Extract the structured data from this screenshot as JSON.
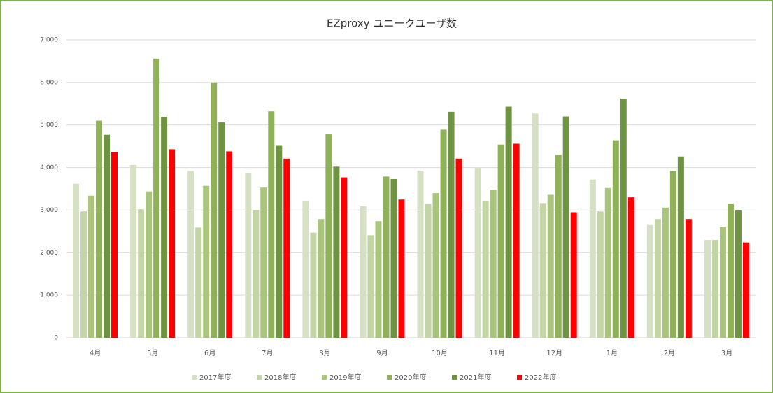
{
  "chart_data": {
    "type": "bar",
    "title": "EZproxy ユニークユーザ数",
    "categories": [
      "4月",
      "5月",
      "6月",
      "7月",
      "8月",
      "9月",
      "10月",
      "11月",
      "12月",
      "1月",
      "2月",
      "3月"
    ],
    "series": [
      {
        "name": "2017年度",
        "color": "#d6e0c4",
        "values": [
          3620,
          4060,
          3920,
          3870,
          3210,
          3090,
          3930,
          3990,
          5270,
          3720,
          2650,
          2300
        ]
      },
      {
        "name": "2018年度",
        "color": "#c3d4a5",
        "values": [
          2970,
          3020,
          2590,
          3000,
          2470,
          2410,
          3140,
          3210,
          3150,
          2970,
          2790,
          2300
        ]
      },
      {
        "name": "2019年度",
        "color": "#a9c47b",
        "values": [
          3340,
          3440,
          3570,
          3530,
          2790,
          2740,
          3400,
          3480,
          3360,
          3520,
          3060,
          2600
        ]
      },
      {
        "name": "2020年度",
        "color": "#8fb157",
        "values": [
          5100,
          6560,
          6000,
          5320,
          4780,
          3790,
          4890,
          4540,
          4300,
          4640,
          3920,
          3140
        ]
      },
      {
        "name": "2021年度",
        "color": "#6e9441",
        "values": [
          4770,
          5190,
          5060,
          4510,
          4020,
          3730,
          5310,
          5430,
          5200,
          5620,
          4260,
          2990
        ]
      },
      {
        "name": "2022年度",
        "color": "#ff0000",
        "values": [
          4370,
          4430,
          4380,
          4210,
          3770,
          3250,
          4210,
          4560,
          2950,
          3300,
          2790,
          2240
        ]
      }
    ],
    "ylim": [
      0,
      7000
    ],
    "yticks": [
      0,
      {
        "value": 1000,
        "label": "1,000"
      },
      {
        "value": 2000,
        "label": "2,000"
      },
      {
        "value": 3000,
        "label": "3,000"
      },
      {
        "value": 4000,
        "label": "4,000"
      },
      {
        "value": 5000,
        "label": "5,000"
      },
      {
        "value": 6000,
        "label": "6,000"
      },
      {
        "value": 7000,
        "label": "7,000"
      }
    ],
    "grid": true,
    "legend": "bottom"
  }
}
